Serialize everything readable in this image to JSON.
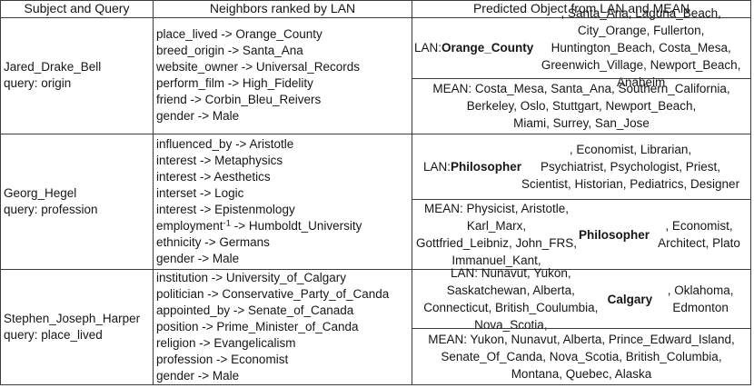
{
  "table": {
    "columns": [
      "Subject and Query",
      "Neighbors ranked by LAN",
      "Predicted Object from LAN and MEAN"
    ],
    "rows": [
      {
        "subject": "Jared_Drake_Bell",
        "query": "query: origin",
        "neighbors": "place_lived -> Orange_County\nbreed_origin -> Santa_Ana\nwebsite_owner -> Universal_Records\nperform_film -> High_Fidelity\nfriend -> Corbin_Bleu_Reivers\ngender -> Male",
        "lan_prediction": "LAN: **Orange_County**, Santa_Ana, Laguna_Beach,\nCity_Orange, Fullerton, Huntington_Beach, Costa_Mesa,\nGreenwich_Village, Newport_Beach, Anaheim",
        "mean_prediction": "MEAN: Costa_Mesa, Santa_Ana, Southern_California,\nBerkeley, Oslo, Stuttgart, Newport_Beach,\nMiami, Surrey, San_Jose"
      },
      {
        "subject": "Georg_Hegel",
        "query": "query: profession",
        "neighbors": "influenced_by -> Aristotle\ninterest -> Metaphysics\ninterest -> Aesthetics\ninterset -> Logic\ninterest -> Epistenmology\nemployment^{-1} -> Humboldt_University\nethnicity -> Germans\ngender -> Male",
        "lan_prediction": "LAN: **Philosopher**, Economist, Librarian,\nPsychiatrist, Psychologist, Priest,\nScientist, Historian, Pediatrics, Designer",
        "mean_prediction": "MEAN: Physicist, Aristotle, Karl_Marx,\nGottfried_Leibniz, John_FRS, Immanuel_Kant,\n**Philosopher**, Economist, Architect, Plato"
      },
      {
        "subject": "Stephen_Joseph_Harper",
        "query": "query: place_lived",
        "neighbors": "institution -> University_of_Calgary\npolitician -> Conservative_Party_of_Canda\nappointed_by -> Senate_of_Canada\nposition -> Prime_Minister_of_Canda\nreligion -> Evangelicalism\nprofession -> Economist\ngender -> Male",
        "lan_prediction": "LAN: Nunavut, Yukon, Saskatchewan, Alberta,\nConnecticut, British_Coulumbia, Nova_Scotia,\n**Calgary**, Oklahoma, Edmonton",
        "mean_prediction": "MEAN: Yukon, Nunavut, Alberta, Prince_Edward_Island,\nSenate_Of_Canda, Nova_Scotia, British_Columbia,\nMontana, Quebec, Alaska"
      }
    ]
  }
}
